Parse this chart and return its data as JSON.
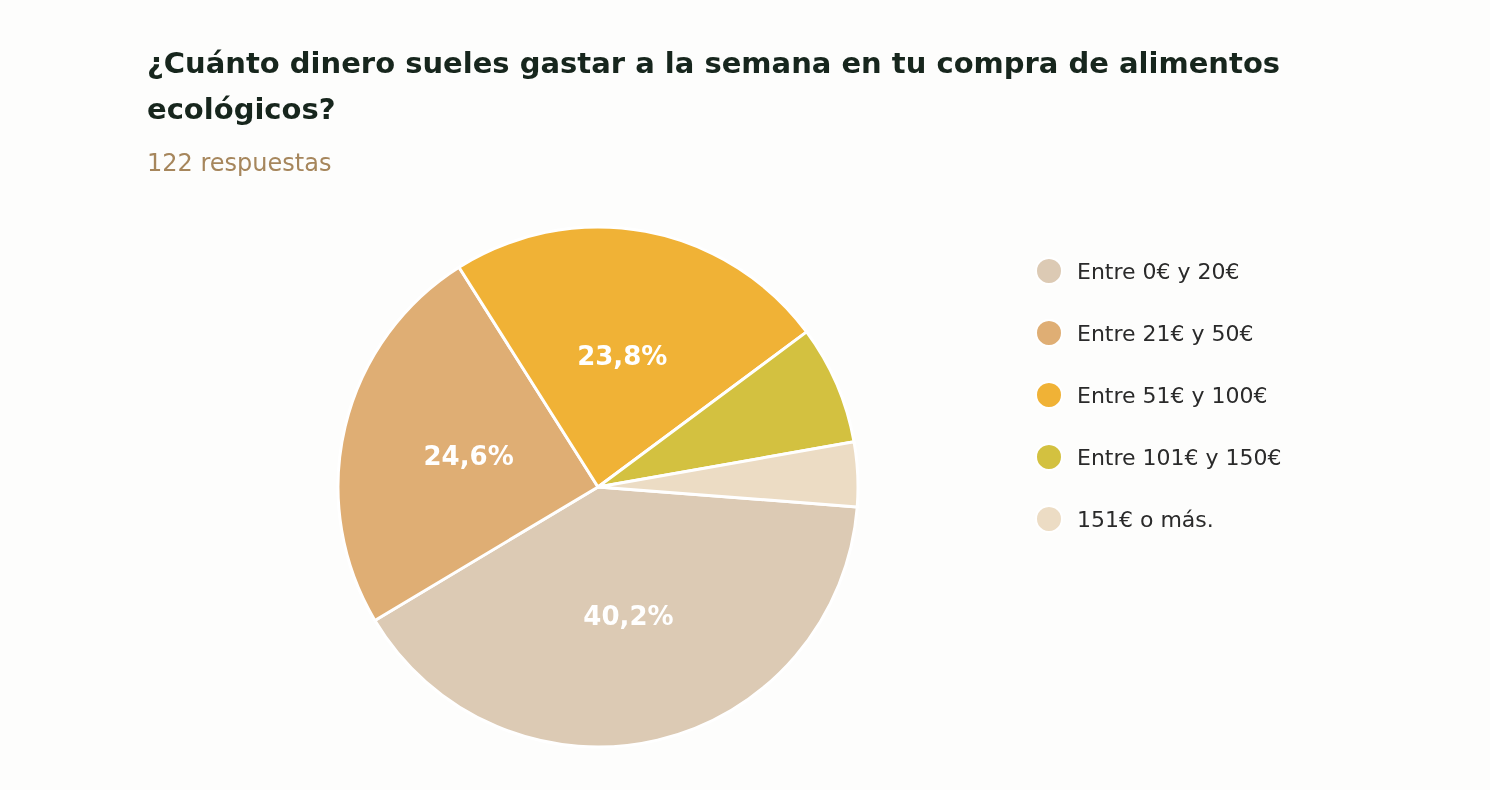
{
  "chart_data": {
    "type": "pie",
    "title": "¿Cuánto dinero sueles gastar a la semana en tu compra de alimentos ecológicos?",
    "subtitle": "122 respuestas",
    "categories": [
      "Entre 0€ y 20€",
      "Entre 21€ y 50€",
      "Entre 51€ y 100€",
      "Entre 101€ y 150€",
      "151€ o más."
    ],
    "values": [
      40.2,
      24.6,
      23.8,
      7.4,
      4.0
    ],
    "value_labels": [
      "40,2%",
      "24,6%",
      "23,8%",
      null,
      null
    ],
    "colors": [
      "#dccab4",
      "#dfae74",
      "#f0b236",
      "#d3c140",
      "#ecdcc4"
    ],
    "legend": "right"
  }
}
